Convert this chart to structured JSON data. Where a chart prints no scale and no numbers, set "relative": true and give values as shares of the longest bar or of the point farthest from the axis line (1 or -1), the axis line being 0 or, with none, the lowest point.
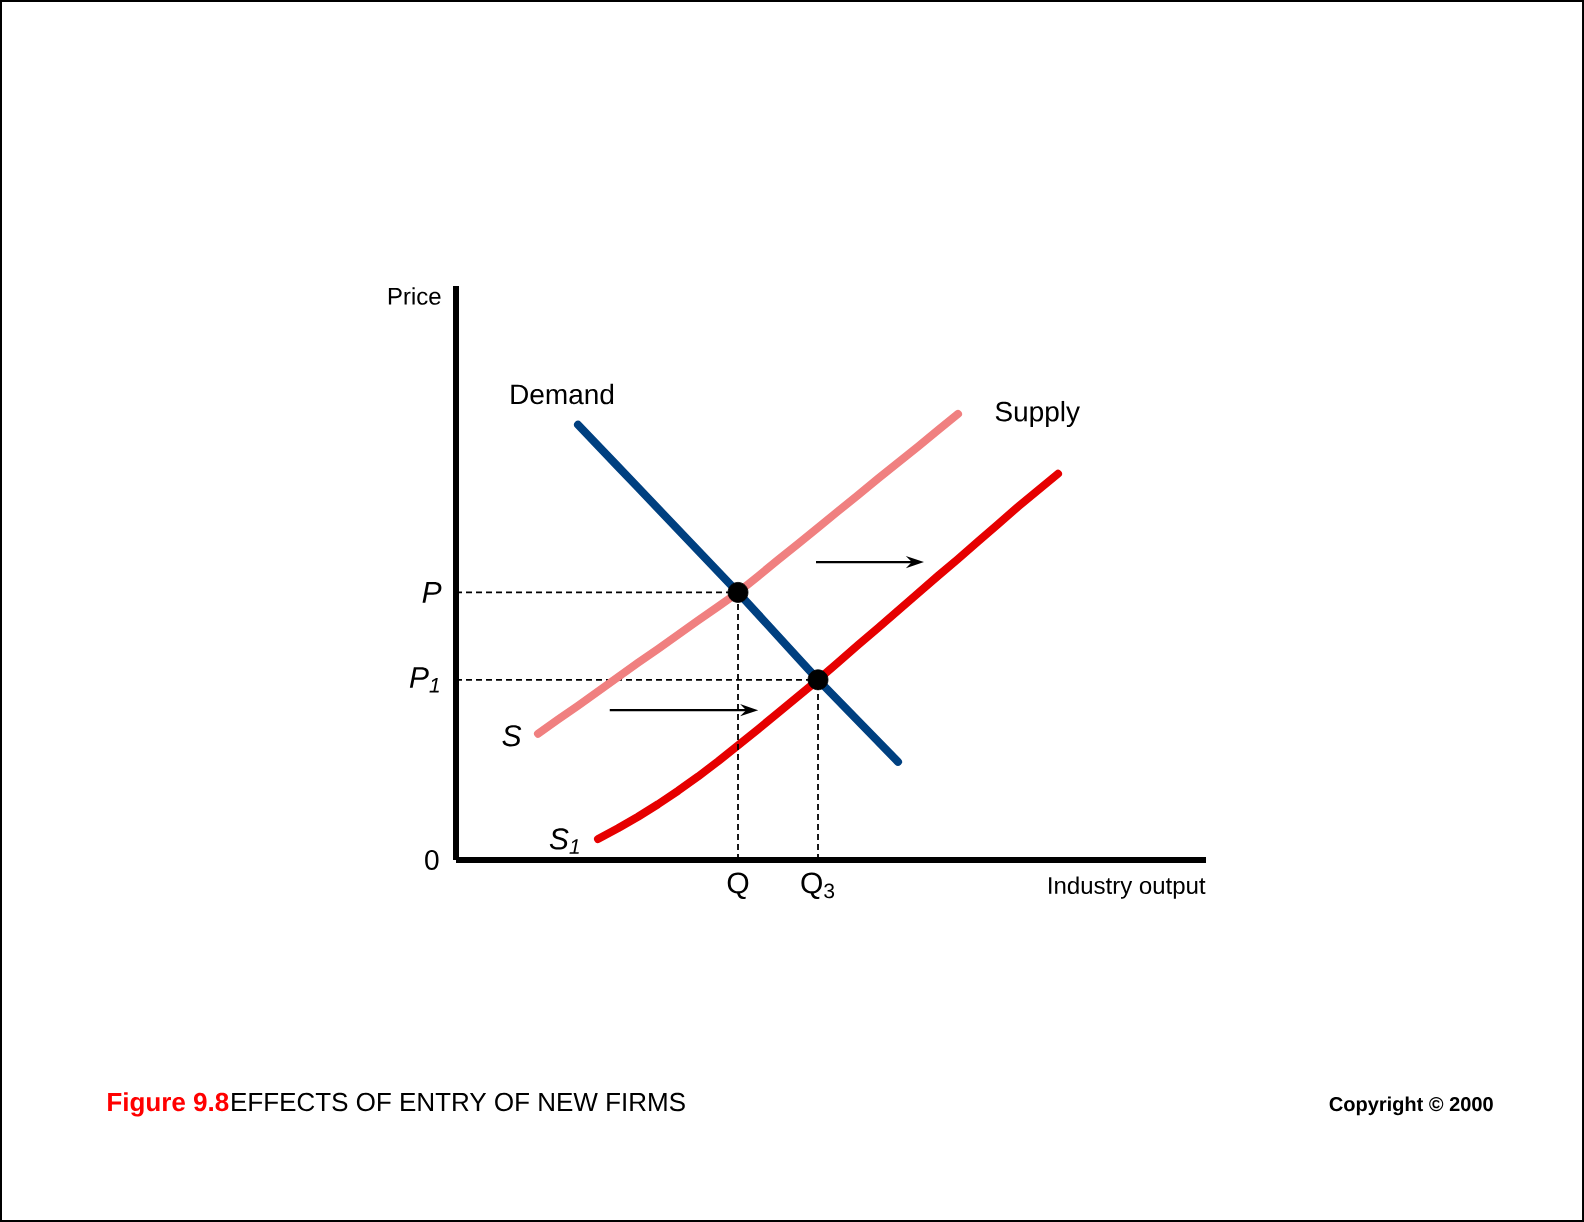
{
  "chart_data": {
    "type": "line",
    "title": "Figure 9.8",
    "subtitle": "EFFECTS OF ENTRY OF NEW FIRMS",
    "xlabel": "Industry output",
    "ylabel": "Price",
    "relative": true,
    "categories": [
      null,
      null,
      null,
      null,
      null,
      null,
      null,
      null,
      null,
      null,
      null,
      null,
      null,
      null,
      "Q",
      null,
      null,
      null,
      "Q$_{3}$",
      null,
      null,
      null,
      null,
      null,
      null,
      null,
      null,
      null,
      null,
      null,
      null,
      null,
      null,
      null,
      null,
      null,
      null,
      null
    ],
    "series": [
      {
        "name": "Demand",
        "color": "#004080",
        "values": [
          null,
          null,
          null,
          null,
          null,
          null,
          0.976,
          0.929,
          0.882,
          0.835,
          0.788,
          0.741,
          0.694,
          0.647,
          0.6,
          0.551,
          0.502,
          0.453,
          0.404,
          0.358,
          0.312,
          0.266,
          0.22,
          null,
          null,
          null,
          null,
          null,
          null,
          null,
          null,
          null,
          null,
          null,
          null,
          null,
          null,
          null
        ]
      },
      {
        "name": "S",
        "color": "#f08080",
        "values": [
          null,
          null,
          null,
          null,
          0.283,
          0.315,
          0.346,
          0.378,
          0.41,
          0.442,
          0.473,
          0.505,
          0.537,
          0.568,
          0.6,
          0.636,
          0.673,
          0.709,
          0.745,
          0.782,
          0.818,
          0.855,
          0.891,
          0.927,
          0.964,
          1,
          null,
          null,
          null,
          null,
          null,
          null,
          null,
          null,
          null,
          null,
          null,
          null
        ]
      },
      {
        "name": "S$_{1}$",
        "color": "#e60000",
        "values": [
          null,
          null,
          null,
          null,
          null,
          null,
          null,
          0.047,
          0.071,
          0.097,
          0.125,
          0.155,
          0.187,
          0.221,
          0.257,
          0.293,
          0.33,
          0.367,
          0.404,
          0.443,
          0.482,
          0.52,
          0.559,
          0.598,
          0.637,
          0.675,
          0.714,
          0.753,
          0.792,
          0.829,
          0.866,
          null,
          null,
          null,
          null,
          null,
          null,
          null
        ]
      },
      {
        "type": "lollipop",
        "color": "#000000",
        "marker": "circle",
        "line_style": "dashed",
        "values": [
          null,
          null,
          null,
          null,
          null,
          null,
          null,
          null,
          null,
          null,
          null,
          null,
          null,
          null,
          0.6,
          null,
          null,
          null,
          0.404,
          null,
          null,
          null,
          null,
          null,
          null,
          null,
          null,
          null,
          null,
          null,
          null,
          null,
          null,
          null,
          null,
          null,
          null,
          null
        ]
      }
    ],
    "ref_lines": [
      {
        "axis": "y",
        "value": 0.6,
        "label": "P",
        "line_style": "dashed",
        "color": "#000000"
      },
      {
        "axis": "y",
        "value": 0.404,
        "label": "P$_{1}$",
        "line_style": "dashed",
        "color": "#000000"
      }
    ],
    "annotations": [
      "0",
      "Supply",
      "Copyright © 2000"
    ]
  }
}
